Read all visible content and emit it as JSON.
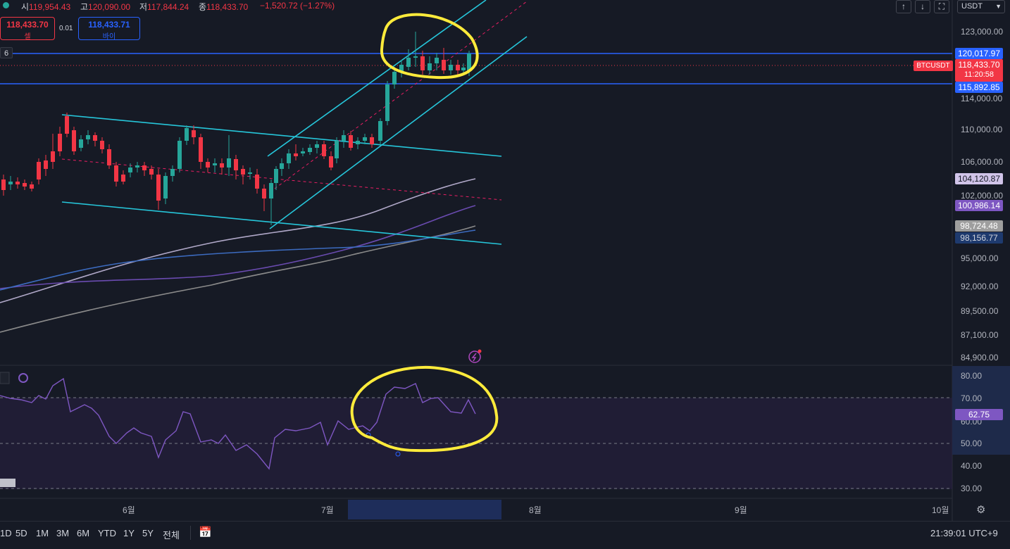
{
  "ohlc": {
    "open_label": "시",
    "open": "119,954.43",
    "high_label": "고",
    "high": "120,090.00",
    "low_label": "저",
    "low": "117,844.24",
    "close_label": "종",
    "close": "118,433.70",
    "change": "−1,520.72 (−1.27%)"
  },
  "trade": {
    "sell_price": "118,433.70",
    "sell_label": "셀",
    "spread": "0.01",
    "buy_price": "118,433.71",
    "buy_label": "바이"
  },
  "left_badge": "6",
  "top_right": {
    "btn_up": "↑",
    "btn_down": "↓",
    "btn_fullscreen": "⛶",
    "currency": "USDT"
  },
  "price_axis": [
    {
      "label": "123,000.00",
      "value": 123000
    },
    {
      "label": "114,000.00",
      "value": 114000
    },
    {
      "label": "110,000.00",
      "value": 110000
    },
    {
      "label": "106,000.00",
      "value": 106000
    },
    {
      "label": "102,000.00",
      "value": 102000
    },
    {
      "label": "95,000.00",
      "value": 95000
    },
    {
      "label": "92,000.00",
      "value": 92000
    },
    {
      "label": "89,500.00",
      "value": 89500
    },
    {
      "label": "87,100.00",
      "value": 87100
    },
    {
      "label": "84,900.00",
      "value": 84900
    }
  ],
  "price_tags": {
    "resistance": "120,017.97",
    "symbol": "BTCUSDT",
    "last": "118,433.70",
    "countdown": "11:20:58",
    "support": "115,892.85",
    "ma1": "104,120.87",
    "ma2": "100,986.14",
    "ma3": "98,724.48",
    "ma4": "98,156.77"
  },
  "rsi": {
    "axis": [
      "80.00",
      "70.00",
      "60.00",
      "50.00",
      "40.00",
      "30.00"
    ],
    "value": "62.75",
    "overbought": 70,
    "oversold": 30
  },
  "time_axis": [
    "6월",
    "7월",
    "8월",
    "9월",
    "10월"
  ],
  "bottom": {
    "ranges": [
      "1D",
      "5D",
      "1M",
      "3M",
      "6M",
      "YTD",
      "1Y",
      "5Y",
      "전체"
    ],
    "clock": "21:39:01 UTC+9"
  },
  "colors": {
    "background": "#161a25",
    "up": "#26a69a",
    "down": "#f23645",
    "channel": "#26c6da",
    "hline": "#2962ff",
    "annotation": "#ffeb3b",
    "rsi": "#7e57c2"
  }
}
